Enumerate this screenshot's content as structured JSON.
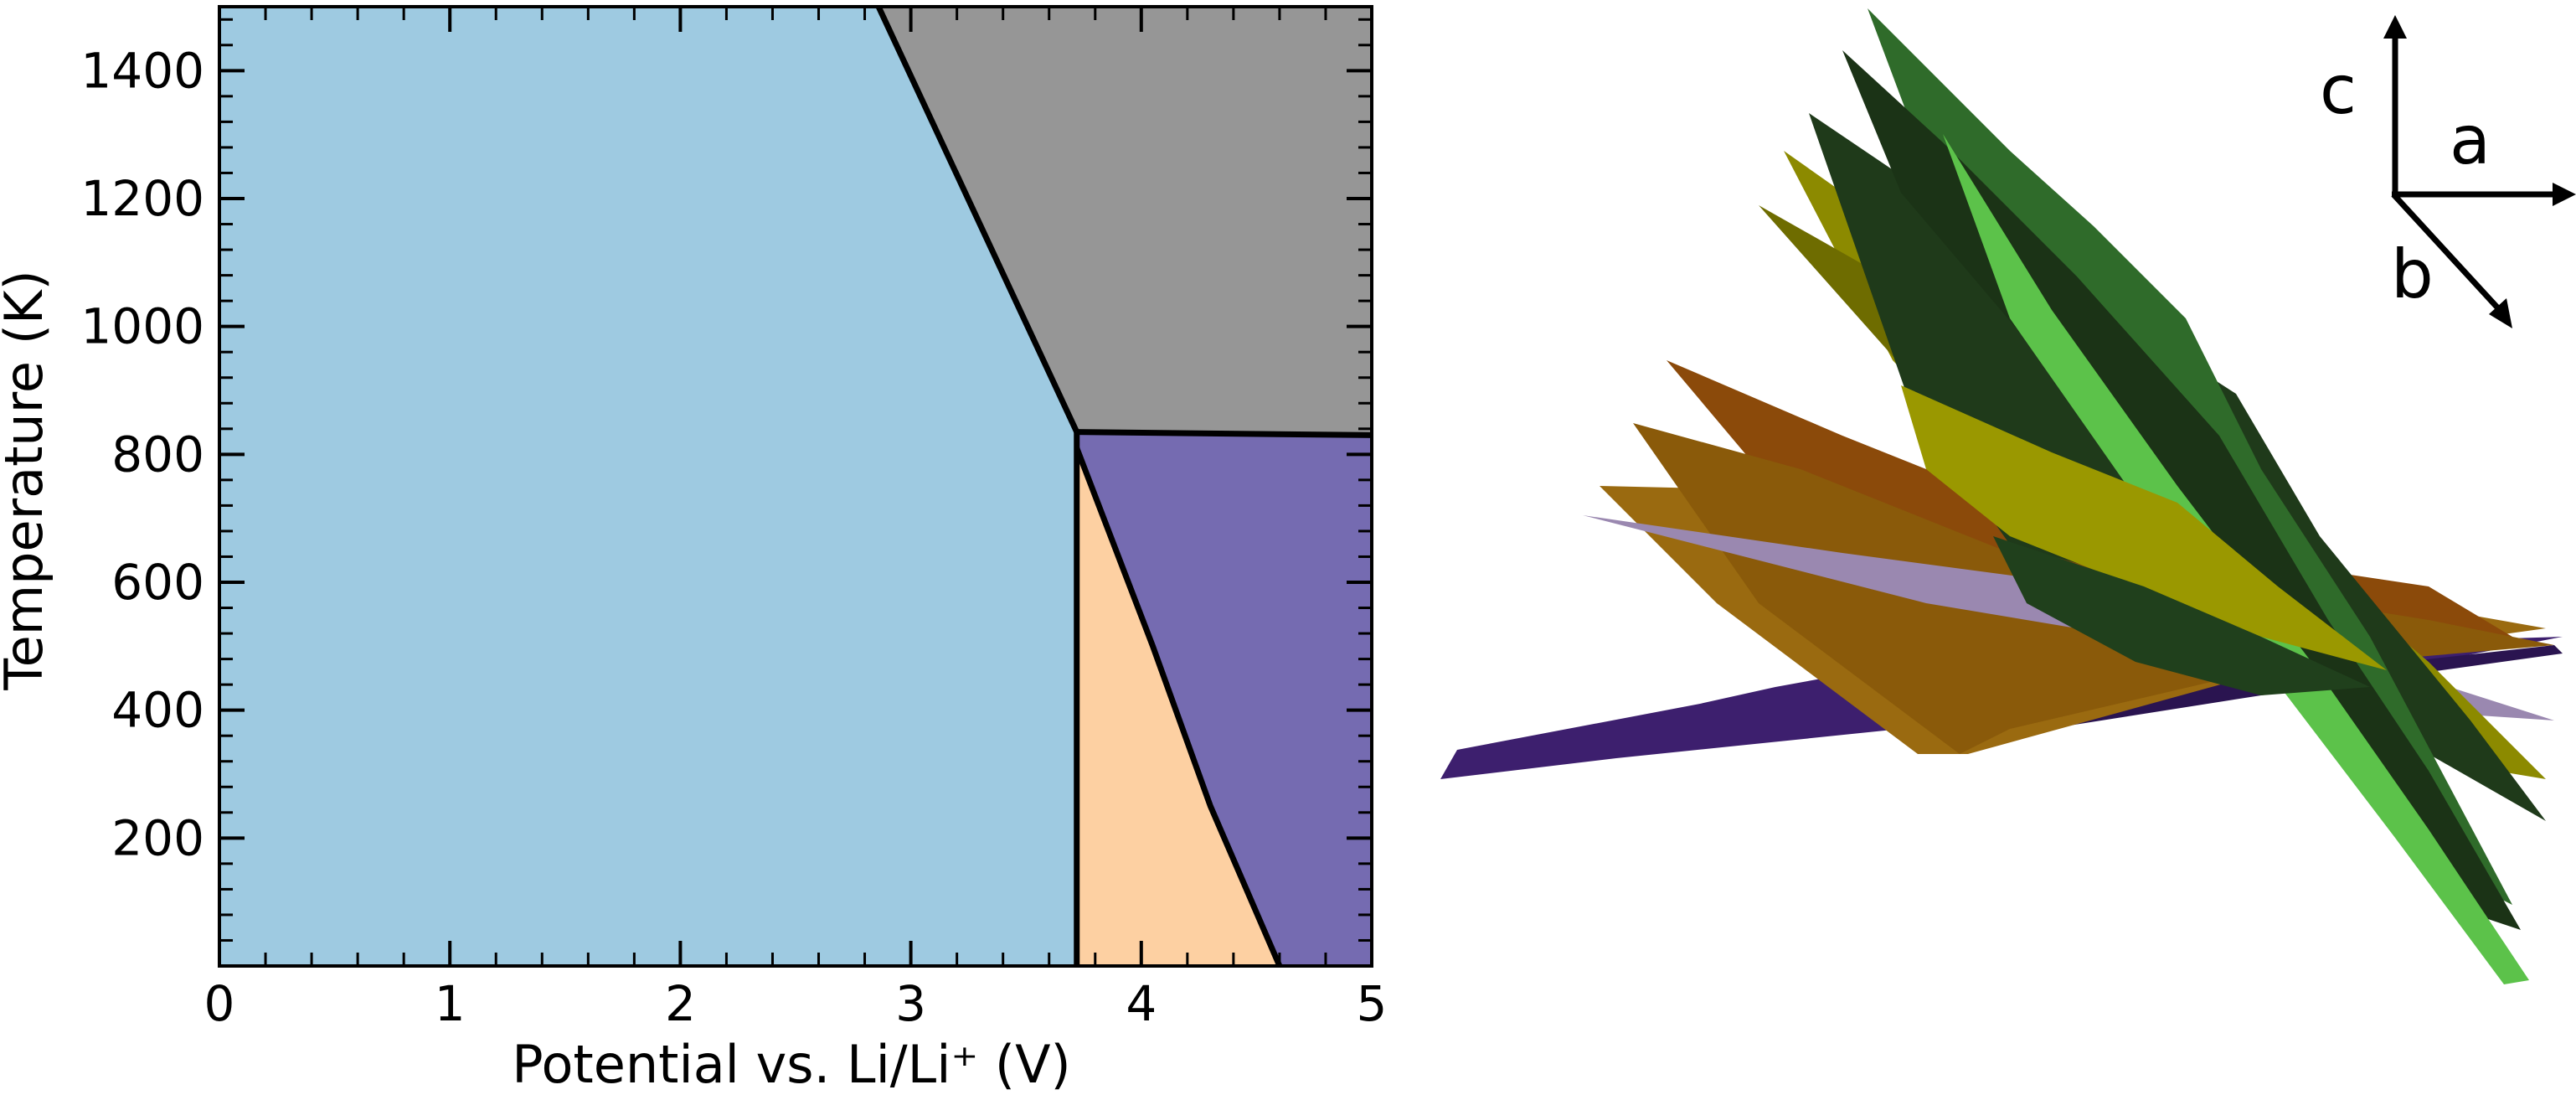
{
  "chart_data": [
    {
      "type": "area",
      "xlabel": "Potential vs. Li/Li⁺ (V)",
      "ylabel": "Temperature (K)",
      "xlim": [
        0,
        5
      ],
      "ylim": [
        0,
        1500
      ],
      "x_ticks": [
        "0",
        "1",
        "2",
        "3",
        "4",
        "5"
      ],
      "y_ticks": [
        "200",
        "400",
        "600",
        "800",
        "1000",
        "1200",
        "1400"
      ],
      "grid": false,
      "regions": [
        {
          "color": "#9ecae1",
          "polygon": [
            [
              0,
              0
            ],
            [
              3.72,
              0
            ],
            [
              3.72,
              835
            ],
            [
              2.86,
              1500
            ],
            [
              0,
              1500
            ]
          ]
        },
        {
          "color": "#969696",
          "polygon": [
            [
              2.86,
              1500
            ],
            [
              5,
              1500
            ],
            [
              5,
              830
            ],
            [
              3.72,
              835
            ]
          ]
        },
        {
          "color": "#756bb1",
          "polygon": [
            [
              3.72,
              835
            ],
            [
              5,
              830
            ],
            [
              5,
              0
            ],
            [
              4.6,
              0
            ],
            [
              4.3,
              250
            ],
            [
              4.05,
              500
            ],
            [
              3.72,
              810
            ]
          ]
        },
        {
          "color": "#fdd0a2",
          "polygon": [
            [
              3.72,
              0
            ],
            [
              4.6,
              0
            ],
            [
              4.3,
              250
            ],
            [
              4.05,
              500
            ],
            [
              3.72,
              810
            ]
          ]
        }
      ],
      "boundaries": [
        {
          "points": [
            [
              2.86,
              1500
            ],
            [
              3.72,
              835
            ]
          ]
        },
        {
          "points": [
            [
              3.72,
              835
            ],
            [
              5,
              830
            ]
          ]
        },
        {
          "points": [
            [
              3.72,
              0
            ],
            [
              3.72,
              835
            ]
          ]
        },
        {
          "points": [
            [
              3.72,
              810
            ],
            [
              4.05,
              500
            ],
            [
              4.3,
              250
            ],
            [
              4.6,
              0
            ]
          ]
        }
      ]
    }
  ],
  "axes_indicator": {
    "c": "c",
    "a": "a",
    "b": "b"
  },
  "surfaces": {
    "colors": {
      "dark_green": "#1f3a1a",
      "green": "#2f6b2a",
      "bright_green": "#5cc24a",
      "olive": "#8c8a00",
      "orange_brown": "#8b4a0a",
      "tan": "#9a6a10",
      "lilac": "#9a88b0",
      "purple": "#3d1f6e"
    }
  }
}
